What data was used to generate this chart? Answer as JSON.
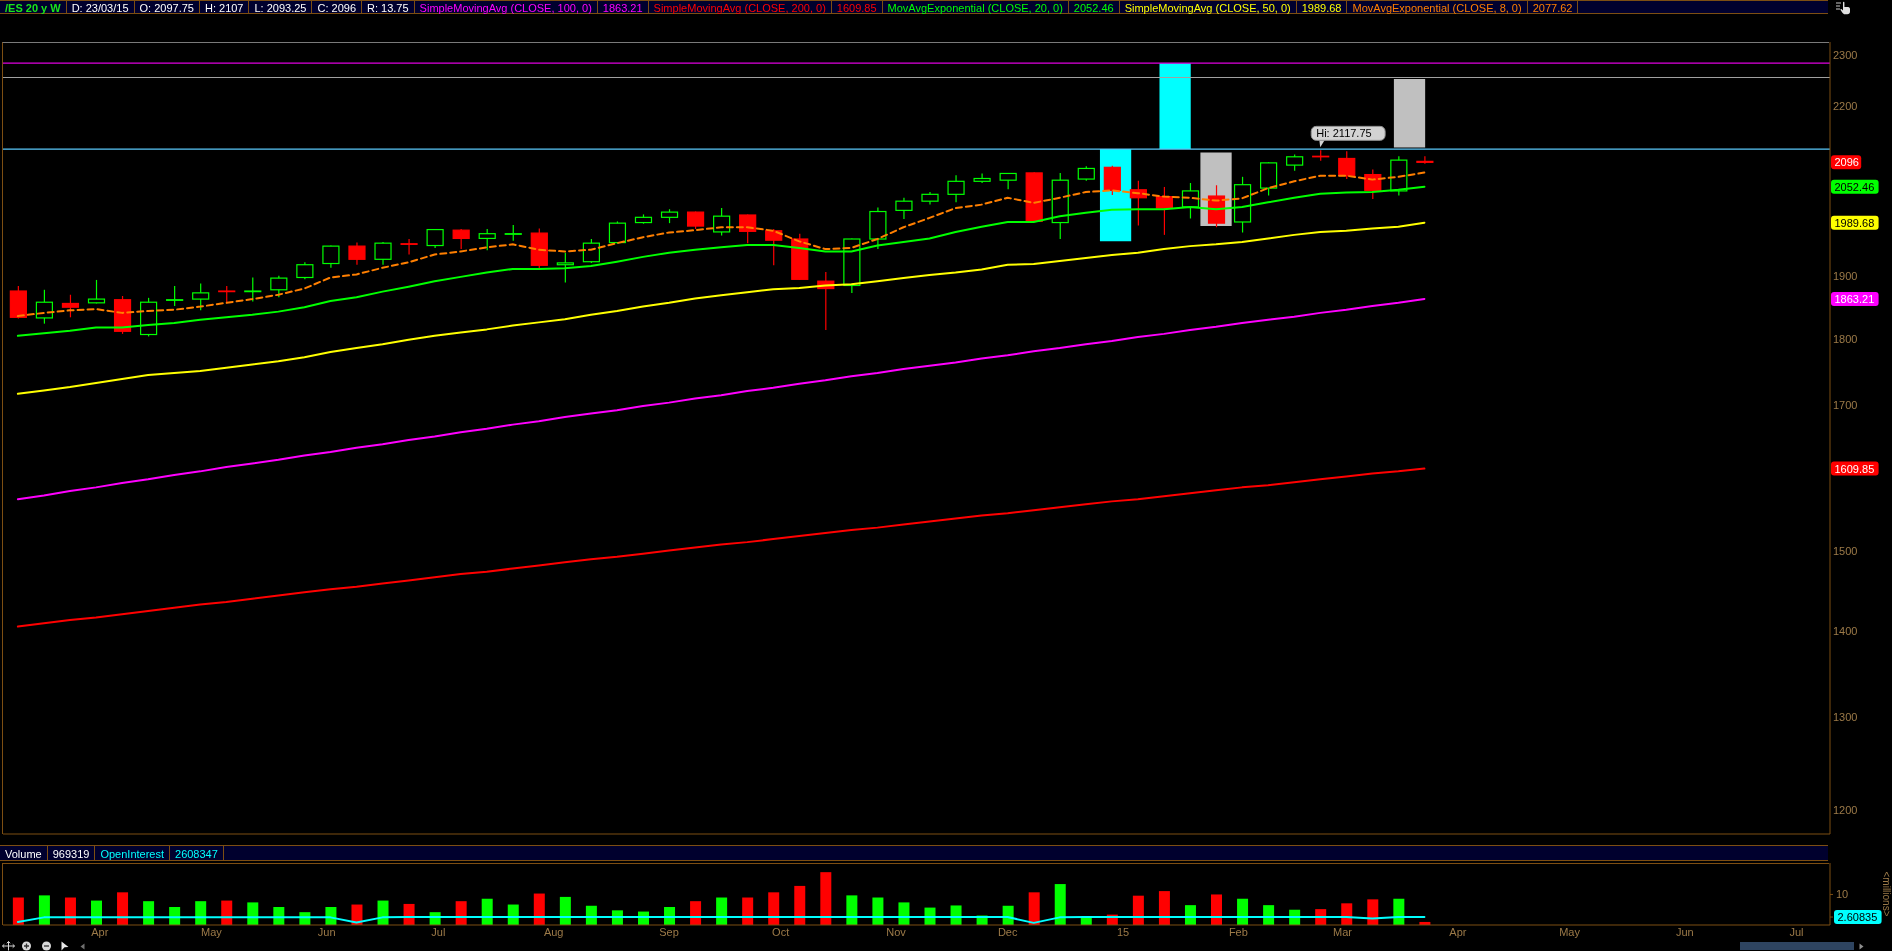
{
  "chart_data": [
    {
      "type": "candlestick",
      "title": "/ES 20 y W",
      "annotations": [
        "D: 23/03/15",
        "O: 2097.75",
        "H: 2107",
        "L: 2093.25",
        "C: 2096",
        "R: 13.75",
        "1863.21",
        "1609.85",
        "2052.46",
        "1989.68",
        "2077.62",
        {
          "text": "Hi: 2117.75",
          "x": "2015-02-23",
          "y": 2117.75
        }
      ],
      "x": [
        "2014-03-10",
        "2014-03-17",
        "2014-03-24",
        "2014-03-31",
        "2014-04-07",
        "2014-04-14",
        "2014-04-21",
        "2014-04-28",
        "2014-05-05",
        "2014-05-12",
        "2014-05-19",
        "2014-05-26",
        "2014-06-02",
        "2014-06-09",
        "2014-06-16",
        "2014-06-23",
        "2014-06-30",
        "2014-07-07",
        "2014-07-14",
        "2014-07-21",
        "2014-07-28",
        "2014-08-04",
        "2014-08-11",
        "2014-08-18",
        "2014-08-25",
        "2014-09-01",
        "2014-09-08",
        "2014-09-15",
        "2014-09-22",
        "2014-09-29",
        "2014-10-06",
        "2014-10-13",
        "2014-10-20",
        "2014-10-27",
        "2014-11-03",
        "2014-11-10",
        "2014-11-17",
        "2014-11-24",
        "2014-12-01",
        "2014-12-08",
        "2014-12-15",
        "2014-12-22",
        "2014-12-29",
        "2015-01-05",
        "2015-01-12",
        "2015-01-19",
        "2015-01-26",
        "2015-02-02",
        "2015-02-09",
        "2015-02-16",
        "2015-02-23",
        "2015-03-02",
        "2015-03-09",
        "2015-03-16",
        "2015-03-23"
      ],
      "ohlc": [
        [
          1876,
          1884,
          1832,
          1834
        ],
        [
          1833,
          1878,
          1824,
          1858
        ],
        [
          1856,
          1870,
          1834,
          1850
        ],
        [
          1857,
          1894,
          1856,
          1863
        ],
        [
          1862,
          1868,
          1808,
          1812
        ],
        [
          1807,
          1865,
          1804,
          1858
        ],
        [
          1861,
          1884,
          1852,
          1862
        ],
        [
          1863,
          1888,
          1845,
          1873
        ],
        [
          1876,
          1884,
          1856,
          1875
        ],
        [
          1875,
          1898,
          1859,
          1876
        ],
        [
          1878,
          1901,
          1866,
          1897
        ],
        [
          1898,
          1923,
          1895,
          1919
        ],
        [
          1921,
          1951,
          1914,
          1950
        ],
        [
          1950,
          1956,
          1919,
          1928
        ],
        [
          1928,
          1957,
          1919,
          1955
        ],
        [
          1954,
          1962,
          1936,
          1953
        ],
        [
          1951,
          1979,
          1947,
          1978
        ],
        [
          1977,
          1979,
          1945,
          1963
        ],
        [
          1963,
          1979,
          1943,
          1971
        ],
        [
          1970,
          1986,
          1959,
          1971
        ],
        [
          1972,
          1980,
          1912,
          1918
        ],
        [
          1919,
          1939,
          1890,
          1922
        ],
        [
          1924,
          1962,
          1922,
          1955
        ],
        [
          1956,
          1992,
          1954,
          1989
        ],
        [
          1990,
          2004,
          1988,
          1999
        ],
        [
          1999,
          2013,
          1989,
          2008
        ],
        [
          2008,
          2009,
          1979,
          1984
        ],
        [
          1974,
          2015,
          1968,
          2001
        ],
        [
          2003,
          2004,
          1955,
          1975
        ],
        [
          1976,
          1979,
          1918,
          1960
        ],
        [
          1962,
          1971,
          1894,
          1895
        ],
        [
          1892,
          1907,
          1814,
          1880
        ],
        [
          1885,
          1963,
          1873,
          1962
        ],
        [
          1962,
          2016,
          1945,
          2009
        ],
        [
          2011,
          2033,
          1996,
          2027
        ],
        [
          2027,
          2043,
          2021,
          2039
        ],
        [
          2039,
          2073,
          2025,
          2062
        ],
        [
          2062,
          2076,
          2059,
          2067
        ],
        [
          2064,
          2077,
          2048,
          2076
        ],
        [
          2077,
          2078,
          1991,
          1992
        ],
        [
          1990,
          2077,
          1962,
          2064
        ],
        [
          2066,
          2089,
          2063,
          2085
        ],
        [
          2087,
          2090,
          2038,
          2046
        ],
        [
          2047,
          2063,
          1985,
          2033
        ],
        [
          2035,
          2052,
          1969,
          2015
        ],
        [
          2017,
          2059,
          1997,
          2045
        ],
        [
          2036,
          2055,
          1982,
          1989
        ],
        [
          1991,
          2070,
          1973,
          2056
        ],
        [
          2050,
          2096,
          2037,
          2095
        ],
        [
          2091,
          2110,
          2081,
          2106
        ],
        [
          2107,
          2117.75,
          2099,
          2106
        ],
        [
          2103,
          2116,
          2066,
          2072
        ],
        [
          2074,
          2083,
          2031,
          2046
        ],
        [
          2045,
          2107,
          2037,
          2100
        ],
        [
          2097.75,
          2107,
          2093.25,
          2096
        ]
      ],
      "colors": [
        "#ff0000",
        "#00ff00",
        "#ff0000",
        "#00ff00",
        "#ff0000",
        "#00ff00",
        "#00ff00",
        "#00ff00",
        "#ff0000",
        "#00ff00",
        "#00ff00",
        "#00ff00",
        "#00ff00",
        "#ff0000",
        "#00ff00",
        "#ff0000",
        "#00ff00",
        "#ff0000",
        "#00ff00",
        "#00ff00",
        "#ff0000",
        "#00ff00",
        "#00ff00",
        "#00ff00",
        "#00ff00",
        "#00ff00",
        "#ff0000",
        "#00ff00",
        "#ff0000",
        "#ff0000",
        "#ff0000",
        "#ff0000",
        "#00ff00",
        "#00ff00",
        "#00ff00",
        "#00ff00",
        "#00ff00",
        "#00ff00",
        "#00ff00",
        "#ff0000",
        "#00ff00",
        "#00ff00",
        "#ff0000",
        "#ff0000",
        "#ff0000",
        "#00ff00",
        "#ff0000",
        "#00ff00",
        "#00ff00",
        "#00ff00",
        "#ff0000",
        "#ff0000",
        "#ff0000",
        "#00ff00",
        "#ff0000"
      ],
      "series": [
        {
          "name": "SimpleMovingAvg (CLOSE, 100, 0)",
          "type": "line",
          "color": "#ff00ff",
          "values": [
            1568,
            1573,
            1579,
            1584,
            1590,
            1595,
            1601,
            1606,
            1612,
            1617,
            1622,
            1628,
            1633,
            1639,
            1644,
            1650,
            1655,
            1661,
            1666,
            1672,
            1677,
            1683,
            1688,
            1693,
            1699,
            1704,
            1710,
            1715,
            1721,
            1726,
            1732,
            1737,
            1743,
            1748,
            1754,
            1759,
            1764,
            1770,
            1775,
            1781,
            1786,
            1792,
            1797,
            1803,
            1808,
            1814,
            1819,
            1825,
            1830,
            1835,
            1841,
            1846,
            1852,
            1857,
            1863.21
          ]
        },
        {
          "name": "SimpleMovingAvg (CLOSE, 200, 0)",
          "type": "line",
          "color": "#ff0000",
          "values": [
            1405,
            1409,
            1413,
            1416,
            1420,
            1424,
            1428,
            1432,
            1435,
            1439,
            1443,
            1447,
            1451,
            1454,
            1458,
            1462,
            1466,
            1470,
            1473,
            1477,
            1481,
            1485,
            1489,
            1492,
            1496,
            1500,
            1504,
            1508,
            1511,
            1515,
            1519,
            1523,
            1527,
            1530,
            1534,
            1538,
            1542,
            1546,
            1549,
            1553,
            1557,
            1561,
            1565,
            1568,
            1572,
            1576,
            1580,
            1584,
            1587,
            1591,
            1595,
            1599,
            1603,
            1606,
            1609.85
          ]
        },
        {
          "name": "MovAvgExponential (CLOSE, 20, 0)",
          "type": "line",
          "color": "#00ff00",
          "values": [
            1805,
            1809,
            1813,
            1818,
            1818,
            1822,
            1825,
            1830,
            1834,
            1838,
            1843,
            1850,
            1860,
            1866,
            1875,
            1883,
            1892,
            1899,
            1906,
            1912,
            1912,
            1913,
            1917,
            1924,
            1932,
            1939,
            1944,
            1948,
            1952,
            1952,
            1947,
            1941,
            1941,
            1951,
            1957,
            1963,
            1974,
            1983,
            1991,
            1991,
            2001,
            2007,
            2012,
            2013,
            2013,
            2017,
            2013,
            2017,
            2025,
            2033,
            2040,
            2042,
            2043,
            2047,
            2052.46
          ]
        },
        {
          "name": "SimpleMovingAvg (CLOSE, 50, 0)",
          "type": "line",
          "color": "#ffff00",
          "values": [
            1717,
            1722,
            1727,
            1733,
            1739,
            1745,
            1748,
            1751,
            1756,
            1761,
            1766,
            1772,
            1780,
            1786,
            1792,
            1799,
            1805,
            1810,
            1815,
            1821,
            1826,
            1831,
            1838,
            1844,
            1851,
            1857,
            1864,
            1869,
            1874,
            1879,
            1881,
            1885,
            1887,
            1892,
            1897,
            1902,
            1906,
            1911,
            1919,
            1920,
            1925,
            1930,
            1935,
            1939,
            1945,
            1950,
            1953,
            1957,
            1963,
            1969,
            1974,
            1976,
            1980,
            1983,
            1989.68
          ]
        },
        {
          "name": "MovAvgExponential (CLOSE, 8, 0)",
          "type": "line",
          "color": "#ff7f00",
          "line_style": "dashed",
          "values": [
            1836,
            1841,
            1845,
            1847,
            1841,
            1844,
            1846,
            1851,
            1857,
            1863,
            1870,
            1880,
            1898,
            1903,
            1914,
            1923,
            1936,
            1941,
            1948,
            1953,
            1944,
            1941,
            1944,
            1955,
            1965,
            1973,
            1977,
            1982,
            1982,
            1976,
            1958,
            1945,
            1947,
            1962,
            1982,
            1998,
            2015,
            2021,
            2033,
            2024,
            2033,
            2043,
            2046,
            2041,
            2035,
            2033,
            2028,
            2032,
            2050,
            2062,
            2072,
            2072,
            2065,
            2070,
            2077.62
          ]
        },
        {
          "type": "bar",
          "x": [
            "2014-12-30",
            "2015-01-15",
            "2015-01-26",
            "2015-03-19"
          ],
          "base": [
            1958,
            2120,
            1984,
            2123
          ],
          "values": [
            162,
            163,
            130,
            129
          ],
          "colors": [
            "#00ffff",
            "#00ffff",
            "#c0c0c0",
            "#c0c0c0"
          ]
        }
      ],
      "xlim": [
        "2014-03-06",
        "2015-07-10"
      ],
      "ylim": [
        1175,
        2325
      ],
      "yticks": [
        1200,
        1300,
        1400,
        1500,
        1609.85,
        1700,
        1800,
        1863.21,
        1900,
        1989.68,
        2052.46,
        2096,
        2200,
        2300
      ],
      "log": true,
      "ref_lines": [
        {
          "axis": "y",
          "value": 2283,
          "color": "#e000e0"
        },
        {
          "axis": "y",
          "value": 2255,
          "color": "#a0a0a0"
        },
        {
          "axis": "y",
          "value": 2120,
          "color": "#5ac8fa"
        }
      ],
      "legend": "top",
      "tick_labels": "y"
    },
    {
      "type": "bar",
      "title": "Volume",
      "annotations": [
        "969319",
        "2608347"
      ],
      "x": [
        "2014-03-10",
        "2014-03-17",
        "2014-03-24",
        "2014-03-31",
        "2014-04-07",
        "2014-04-14",
        "2014-04-21",
        "2014-04-28",
        "2014-05-05",
        "2014-05-12",
        "2014-05-19",
        "2014-05-26",
        "2014-06-02",
        "2014-06-09",
        "2014-06-16",
        "2014-06-23",
        "2014-06-30",
        "2014-07-07",
        "2014-07-14",
        "2014-07-21",
        "2014-07-28",
        "2014-08-04",
        "2014-08-11",
        "2014-08-18",
        "2014-08-25",
        "2014-09-01",
        "2014-09-08",
        "2014-09-15",
        "2014-09-22",
        "2014-09-29",
        "2014-10-06",
        "2014-10-13",
        "2014-10-20",
        "2014-10-27",
        "2014-11-03",
        "2014-11-10",
        "2014-11-17",
        "2014-11-24",
        "2014-12-01",
        "2014-12-08",
        "2014-12-15",
        "2014-12-22",
        "2014-12-29",
        "2015-01-05",
        "2015-01-12",
        "2015-01-19",
        "2015-01-26",
        "2015-02-02",
        "2015-02-09",
        "2015-02-16",
        "2015-02-23",
        "2015-03-02",
        "2015-03-09",
        "2015-03-16",
        "2015-03-23"
      ],
      "series": [
        {
          "values": [
            9.0,
            9.7,
            9.0,
            8.0,
            10.7,
            7.8,
            5.9,
            7.8,
            8.0,
            7.4,
            5.9,
            4.2,
            5.9,
            6.7,
            8.0,
            6.9,
            4.2,
            7.8,
            8.6,
            6.7,
            10.3,
            9.2,
            6.3,
            4.8,
            4.4,
            5.9,
            7.8,
            9.0,
            9.0,
            10.7,
            12.8,
            17.3,
            9.7,
            9.0,
            7.4,
            5.7,
            6.4,
            3.1,
            6.3,
            10.7,
            13.4,
            2.3,
            3.4,
            9.6,
            11.1,
            6.5,
            10.0,
            8.6,
            6.5,
            5.0,
            5.2,
            7.1,
            8.4,
            8.6,
            1.0
          ],
          "colors": [
            "#ff0000",
            "#00ff00",
            "#ff0000",
            "#00ff00",
            "#ff0000",
            "#00ff00",
            "#00ff00",
            "#00ff00",
            "#ff0000",
            "#00ff00",
            "#00ff00",
            "#00ff00",
            "#00ff00",
            "#ff0000",
            "#00ff00",
            "#ff0000",
            "#00ff00",
            "#ff0000",
            "#00ff00",
            "#00ff00",
            "#ff0000",
            "#00ff00",
            "#00ff00",
            "#00ff00",
            "#00ff00",
            "#00ff00",
            "#ff0000",
            "#00ff00",
            "#ff0000",
            "#ff0000",
            "#ff0000",
            "#ff0000",
            "#00ff00",
            "#00ff00",
            "#00ff00",
            "#00ff00",
            "#00ff00",
            "#00ff00",
            "#00ff00",
            "#ff0000",
            "#00ff00",
            "#00ff00",
            "#ff0000",
            "#ff0000",
            "#ff0000",
            "#00ff00",
            "#ff0000",
            "#00ff00",
            "#00ff00",
            "#00ff00",
            "#ff0000",
            "#ff0000",
            "#ff0000",
            "#00ff00",
            "#ff0000"
          ]
        },
        {
          "name": "OpenInterest",
          "type": "line",
          "color": "#00ffff",
          "values": [
            1.0,
            2.5,
            2.5,
            2.5,
            2.5,
            2.5,
            2.5,
            2.5,
            2.5,
            2.5,
            2.5,
            2.5,
            2.5,
            0.8,
            2.5,
            2.6,
            2.6,
            2.6,
            2.6,
            2.6,
            2.6,
            2.6,
            2.6,
            2.6,
            2.6,
            2.6,
            2.6,
            2.6,
            2.6,
            2.6,
            2.6,
            2.6,
            2.6,
            2.6,
            2.6,
            2.6,
            2.6,
            2.6,
            2.6,
            0.7,
            2.5,
            2.6,
            2.6,
            2.6,
            2.6,
            2.6,
            2.6,
            2.6,
            2.6,
            2.6,
            2.6,
            2.6,
            2.1,
            2.6,
            2.60835
          ]
        }
      ],
      "ylabel": "<millions>",
      "xlim": [
        "2014-03-06",
        "2015-07-10"
      ],
      "xticks": [
        {
          "value": "2014-04-01",
          "label": "Apr"
        },
        {
          "value": "2014-05-01",
          "label": "May"
        },
        {
          "value": "2014-06-01",
          "label": "Jun"
        },
        {
          "value": "2014-07-01",
          "label": "Jul"
        },
        {
          "value": "2014-08-01",
          "label": "Aug"
        },
        {
          "value": "2014-09-01",
          "label": "Sep"
        },
        {
          "value": "2014-10-01",
          "label": "Oct"
        },
        {
          "value": "2014-11-01",
          "label": "Nov"
        },
        {
          "value": "2014-12-01",
          "label": "Dec"
        },
        {
          "value": "2015-01-01",
          "label": "15"
        },
        {
          "value": "2015-02-01",
          "label": "Feb"
        },
        {
          "value": "2015-03-01",
          "label": "Mar"
        },
        {
          "value": "2015-04-01",
          "label": "Apr"
        },
        {
          "value": "2015-05-01",
          "label": "May"
        },
        {
          "value": "2015-06-01",
          "label": "Jun"
        },
        {
          "value": "2015-07-01",
          "label": "Jul"
        }
      ],
      "ylim": [
        0,
        20.3
      ],
      "yticks": [
        2.60835,
        10
      ],
      "legend": "top"
    }
  ]
}
